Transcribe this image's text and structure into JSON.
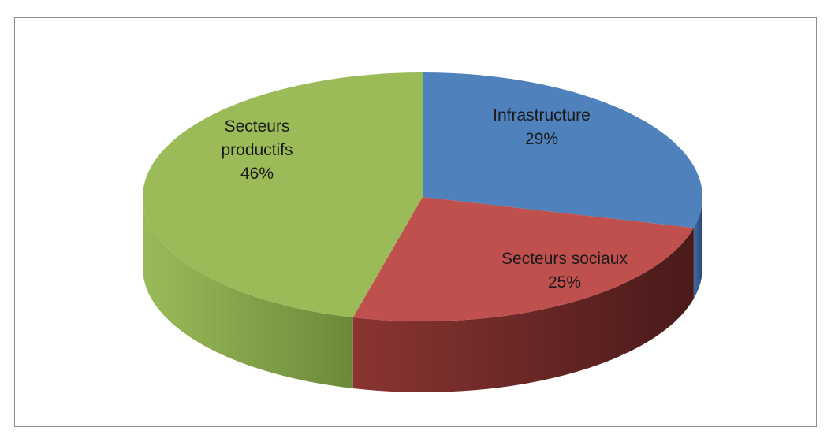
{
  "chart_data": {
    "type": "pie",
    "style": "3d",
    "categories": [
      "Infrastructure",
      "Secteurs sociaux",
      "Secteurs productifs"
    ],
    "values": [
      29,
      25,
      46
    ],
    "labels": [
      {
        "name_lines": [
          "Infrastructure"
        ],
        "value": "29%"
      },
      {
        "name_lines": [
          "Secteurs sociaux"
        ],
        "value": "25%"
      },
      {
        "name_lines": [
          "Secteurs",
          "productifs"
        ],
        "value": "46%"
      }
    ],
    "colors": [
      "#4f81bd",
      "#c0504d",
      "#9bbb59"
    ],
    "title": "",
    "legend": "none"
  }
}
